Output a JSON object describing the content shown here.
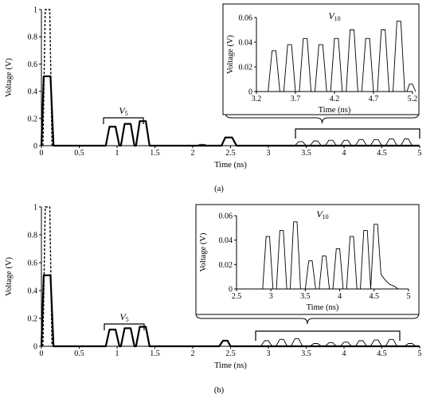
{
  "chart_data": [
    {
      "type": "line",
      "panel_label": "(a)",
      "xlabel": "Time (ns)",
      "ylabel": "Voltage (V)",
      "xlim": [
        0,
        5
      ],
      "ylim": [
        0,
        1
      ],
      "xticks": [
        "0",
        "0.5",
        "1",
        "1.5",
        "2",
        "2.5",
        "3",
        "3.5",
        "4",
        "4.5",
        "5"
      ],
      "yticks": [
        "0",
        "0.2",
        "0.4",
        "0.6",
        "0.8",
        "1"
      ],
      "grid": false,
      "bracket_label_main": "V",
      "bracket_label_sub": "5",
      "series": [
        {
          "style": "dashed",
          "points": [
            [
              0.02,
              0
            ],
            [
              0.05,
              1
            ],
            [
              0.11,
              1
            ],
            [
              0.14,
              0
            ]
          ]
        },
        {
          "style": "solid-bold",
          "points": [
            [
              0,
              0
            ],
            [
              0.03,
              0.51
            ],
            [
              0.12,
              0.51
            ],
            [
              0.16,
              0
            ],
            [
              0.85,
              0
            ],
            [
              0.9,
              0.14
            ],
            [
              0.98,
              0.14
            ],
            [
              1.03,
              0
            ],
            [
              1.05,
              0
            ],
            [
              1.1,
              0.16
            ],
            [
              1.18,
              0.16
            ],
            [
              1.23,
              0
            ],
            [
              1.25,
              0
            ],
            [
              1.3,
              0.18
            ],
            [
              1.38,
              0.18
            ],
            [
              1.43,
              0
            ],
            [
              2.38,
              0
            ],
            [
              2.43,
              0.06
            ],
            [
              2.52,
              0.06
            ],
            [
              2.58,
              0
            ],
            [
              5,
              0
            ]
          ]
        },
        {
          "style": "solid-thin",
          "points": [
            [
              2.05,
              0
            ],
            [
              2.1,
              0.01
            ],
            [
              2.15,
              0.01
            ],
            [
              2.2,
              0
            ],
            [
              3.35,
              0
            ],
            [
              3.4,
              0.03
            ],
            [
              3.45,
              0.03
            ],
            [
              3.5,
              0
            ],
            [
              3.55,
              0
            ],
            [
              3.6,
              0.035
            ],
            [
              3.65,
              0.035
            ],
            [
              3.7,
              0
            ],
            [
              3.75,
              0
            ],
            [
              3.8,
              0.04
            ],
            [
              3.85,
              0.04
            ],
            [
              3.9,
              0
            ],
            [
              3.95,
              0
            ],
            [
              4,
              0.04
            ],
            [
              4.05,
              0.04
            ],
            [
              4.1,
              0
            ],
            [
              4.15,
              0
            ],
            [
              4.2,
              0.045
            ],
            [
              4.25,
              0.045
            ],
            [
              4.3,
              0
            ],
            [
              4.35,
              0
            ],
            [
              4.4,
              0.045
            ],
            [
              4.45,
              0.045
            ],
            [
              4.5,
              0
            ],
            [
              4.55,
              0
            ],
            [
              4.6,
              0.05
            ],
            [
              4.65,
              0.05
            ],
            [
              4.7,
              0
            ],
            [
              4.75,
              0
            ],
            [
              4.8,
              0.05
            ],
            [
              4.85,
              0.05
            ],
            [
              4.9,
              0
            ]
          ]
        }
      ],
      "inset": {
        "label_main": "V",
        "label_sub": "10",
        "xlabel": "Time (ns)",
        "ylabel": "Voltage (V)",
        "xlim": [
          3.2,
          5.2
        ],
        "ylim": [
          0,
          0.06
        ],
        "xticks": [
          "3.2",
          "3.7",
          "4.2",
          "4.7",
          "5.2"
        ],
        "yticks": [
          "0",
          "0.02",
          "0.04",
          "0.06"
        ],
        "points": [
          [
            3.2,
            0
          ],
          [
            3.35,
            0
          ],
          [
            3.4,
            0.033
          ],
          [
            3.45,
            0.033
          ],
          [
            3.5,
            0
          ],
          [
            3.55,
            0
          ],
          [
            3.6,
            0.038
          ],
          [
            3.65,
            0.038
          ],
          [
            3.7,
            0
          ],
          [
            3.75,
            0
          ],
          [
            3.8,
            0.043
          ],
          [
            3.85,
            0.043
          ],
          [
            3.9,
            0
          ],
          [
            3.95,
            0
          ],
          [
            4.0,
            0.038
          ],
          [
            4.05,
            0.038
          ],
          [
            4.1,
            0
          ],
          [
            4.15,
            0
          ],
          [
            4.2,
            0.043
          ],
          [
            4.25,
            0.043
          ],
          [
            4.3,
            0
          ],
          [
            4.35,
            0
          ],
          [
            4.4,
            0.05
          ],
          [
            4.45,
            0.05
          ],
          [
            4.5,
            0
          ],
          [
            4.55,
            0
          ],
          [
            4.6,
            0.043
          ],
          [
            4.65,
            0.043
          ],
          [
            4.7,
            0
          ],
          [
            4.75,
            0
          ],
          [
            4.8,
            0.05
          ],
          [
            4.85,
            0.05
          ],
          [
            4.9,
            0
          ],
          [
            4.95,
            0
          ],
          [
            5.0,
            0.057
          ],
          [
            5.05,
            0.057
          ],
          [
            5.1,
            0
          ],
          [
            5.13,
            0
          ],
          [
            5.16,
            0.006
          ],
          [
            5.2,
            0.006
          ],
          [
            5.24,
            0
          ]
        ]
      }
    },
    {
      "type": "line",
      "panel_label": "(b)",
      "xlabel": "Time (ns)",
      "ylabel": "Voltage (V)",
      "xlim": [
        0,
        5
      ],
      "ylim": [
        0,
        1
      ],
      "xticks": [
        "0",
        "0.5",
        "1",
        "1.5",
        "2",
        "2.5",
        "3",
        "3.5",
        "4",
        "4.5",
        "5"
      ],
      "yticks": [
        "0",
        "0.2",
        "0.4",
        "0.6",
        "0.8",
        "1"
      ],
      "grid": false,
      "bracket_label_main": "V",
      "bracket_label_sub": "5",
      "series": [
        {
          "style": "dashed",
          "points": [
            [
              0.02,
              0
            ],
            [
              0.05,
              1
            ],
            [
              0.11,
              1
            ],
            [
              0.14,
              0
            ]
          ]
        },
        {
          "style": "solid-bold",
          "points": [
            [
              0,
              0
            ],
            [
              0.03,
              0.51
            ],
            [
              0.12,
              0.51
            ],
            [
              0.16,
              0
            ],
            [
              0.85,
              0
            ],
            [
              0.9,
              0.12
            ],
            [
              0.98,
              0.12
            ],
            [
              1.03,
              0
            ],
            [
              1.05,
              0
            ],
            [
              1.1,
              0.13
            ],
            [
              1.18,
              0.13
            ],
            [
              1.23,
              0
            ],
            [
              1.25,
              0
            ],
            [
              1.3,
              0.14
            ],
            [
              1.38,
              0.14
            ],
            [
              1.43,
              0
            ],
            [
              2.35,
              0
            ],
            [
              2.4,
              0.04
            ],
            [
              2.46,
              0.04
            ],
            [
              2.5,
              0
            ],
            [
              5,
              0
            ]
          ]
        },
        {
          "style": "solid-thin",
          "points": [
            [
              2.9,
              0
            ],
            [
              2.95,
              0.04
            ],
            [
              3.0,
              0.04
            ],
            [
              3.05,
              0
            ],
            [
              3.1,
              0
            ],
            [
              3.15,
              0.05
            ],
            [
              3.2,
              0.05
            ],
            [
              3.25,
              0
            ],
            [
              3.3,
              0
            ],
            [
              3.35,
              0.055
            ],
            [
              3.4,
              0.055
            ],
            [
              3.45,
              0
            ],
            [
              3.55,
              0
            ],
            [
              3.6,
              0.02
            ],
            [
              3.65,
              0.02
            ],
            [
              3.7,
              0
            ],
            [
              3.75,
              0
            ],
            [
              3.8,
              0.025
            ],
            [
              3.85,
              0.025
            ],
            [
              3.9,
              0
            ],
            [
              3.95,
              0
            ],
            [
              4.0,
              0.03
            ],
            [
              4.05,
              0.03
            ],
            [
              4.1,
              0
            ],
            [
              4.15,
              0
            ],
            [
              4.2,
              0.04
            ],
            [
              4.25,
              0.04
            ],
            [
              4.3,
              0
            ],
            [
              4.35,
              0
            ],
            [
              4.4,
              0.045
            ],
            [
              4.45,
              0.045
            ],
            [
              4.5,
              0
            ],
            [
              4.55,
              0
            ],
            [
              4.6,
              0.05
            ],
            [
              4.65,
              0.05
            ],
            [
              4.7,
              0
            ],
            [
              4.8,
              0
            ],
            [
              4.85,
              0.02
            ],
            [
              4.9,
              0.02
            ],
            [
              4.95,
              0
            ]
          ]
        }
      ],
      "inset": {
        "label_main": "V",
        "label_sub": "10",
        "xlabel": "Time (ns)",
        "ylabel": "Voltage (V)",
        "xlim": [
          2.5,
          5
        ],
        "ylim": [
          0,
          0.06
        ],
        "xticks": [
          "2.5",
          "3",
          "3.5",
          "4",
          "4.5",
          "5"
        ],
        "yticks": [
          "0",
          "0.02",
          "0.04",
          "0.06"
        ],
        "points": [
          [
            2.5,
            0
          ],
          [
            2.88,
            0
          ],
          [
            2.93,
            0.043
          ],
          [
            2.98,
            0.043
          ],
          [
            3.03,
            0
          ],
          [
            3.08,
            0
          ],
          [
            3.13,
            0.048
          ],
          [
            3.18,
            0.048
          ],
          [
            3.23,
            0
          ],
          [
            3.28,
            0
          ],
          [
            3.33,
            0.055
          ],
          [
            3.38,
            0.055
          ],
          [
            3.43,
            0
          ],
          [
            3.5,
            0
          ],
          [
            3.55,
            0.023
          ],
          [
            3.6,
            0.023
          ],
          [
            3.65,
            0
          ],
          [
            3.7,
            0
          ],
          [
            3.75,
            0.027
          ],
          [
            3.8,
            0.027
          ],
          [
            3.85,
            0
          ],
          [
            3.9,
            0
          ],
          [
            3.95,
            0.033
          ],
          [
            4.0,
            0.033
          ],
          [
            4.05,
            0
          ],
          [
            4.1,
            0
          ],
          [
            4.15,
            0.043
          ],
          [
            4.2,
            0.043
          ],
          [
            4.25,
            0
          ],
          [
            4.3,
            0
          ],
          [
            4.35,
            0.048
          ],
          [
            4.4,
            0.048
          ],
          [
            4.45,
            0
          ],
          [
            4.5,
            0.053
          ],
          [
            4.55,
            0.053
          ],
          [
            4.6,
            0.012
          ],
          [
            4.65,
            0.008
          ],
          [
            4.72,
            0.004
          ],
          [
            4.8,
            0.002
          ],
          [
            4.85,
            0
          ]
        ]
      }
    }
  ]
}
